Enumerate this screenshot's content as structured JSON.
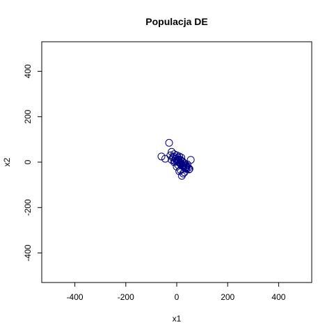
{
  "chart_data": {
    "type": "scatter",
    "title": "Populacja DE",
    "xlabel": "x1",
    "ylabel": "x2",
    "xlim": [
      -530,
      530
    ],
    "ylim": [
      -530,
      530
    ],
    "xticks": [
      -400,
      -200,
      0,
      200,
      400
    ],
    "yticks": [
      -400,
      -200,
      0,
      200,
      400
    ],
    "xtick_labels": [
      "-400",
      "-200",
      "0",
      "200",
      "400"
    ],
    "ytick_labels": [
      "-400",
      "-200",
      "0",
      "200",
      "400"
    ],
    "grid": false,
    "legend": "none",
    "marker": "open-circle",
    "color": "#000080",
    "x": [
      -30,
      -60,
      -45,
      -20,
      -10,
      0,
      5,
      10,
      15,
      20,
      25,
      30,
      35,
      40,
      45,
      50,
      -15,
      -5,
      0,
      8,
      12,
      18,
      22,
      28,
      32,
      38,
      -25,
      -12,
      3,
      14,
      26,
      36,
      48,
      55,
      -8,
      6,
      16,
      24,
      34,
      20,
      10,
      0,
      -10,
      -20,
      30,
      42,
      15,
      5,
      25,
      18
    ],
    "y": [
      85,
      25,
      15,
      45,
      35,
      30,
      20,
      25,
      10,
      5,
      0,
      -5,
      -15,
      -20,
      -25,
      -30,
      20,
      15,
      5,
      0,
      -5,
      -10,
      -15,
      -20,
      -25,
      -30,
      30,
      25,
      10,
      -2,
      -12,
      -22,
      -32,
      10,
      5,
      12,
      -8,
      -18,
      -28,
      -60,
      -40,
      -20,
      0,
      10,
      -45,
      -10,
      -35,
      -12,
      -50,
      20
    ]
  }
}
